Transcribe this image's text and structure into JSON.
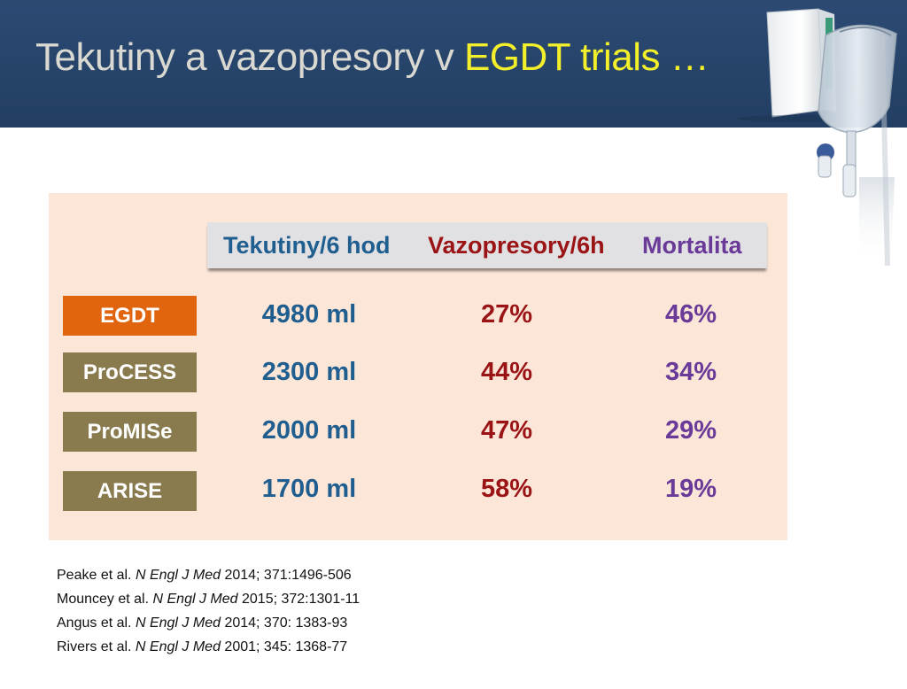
{
  "slide": {
    "title_main": "Tekutiny a vazopresory v ",
    "title_highlight": "EGDT trials …"
  },
  "table": {
    "columns": [
      "Tekutiny/6 hod",
      "Vazopresory/6h",
      "Mortalita"
    ],
    "rows": [
      {
        "trial": "EGDT",
        "fluids": "4980 ml",
        "vasopressors": "27%",
        "mortality": "46%",
        "badge_color": "#e1650f"
      },
      {
        "trial": "ProCESS",
        "fluids": "2300 ml",
        "vasopressors": "44%",
        "mortality": "34%",
        "badge_color": "#8a7b4f"
      },
      {
        "trial": "ProMISe",
        "fluids": "2000 ml",
        "vasopressors": "47%",
        "mortality": "29%",
        "badge_color": "#8a7b4f"
      },
      {
        "trial": "ARISE",
        "fluids": "1700 ml",
        "vasopressors": "58%",
        "mortality": "19%",
        "badge_color": "#8a7b4f"
      }
    ]
  },
  "references": [
    {
      "author": "Peake  et al. ",
      "journal": "N Engl J Med",
      "citation": " 2014; 371:1496-506"
    },
    {
      "author": "Mouncey  et al. ",
      "journal": "N Engl J Med",
      "citation": " 2015; 372:1301-11"
    },
    {
      "author": "Angus et al. ",
      "journal": "N Engl J Med",
      "citation": "  2014; 370: 1383-93"
    },
    {
      "author": "Rivers et al. ",
      "journal": "N Engl J Med",
      "citation": "  2001; 345: 1368-77"
    }
  ],
  "colors": {
    "header_bg": "#2c4a73",
    "title_text": "#d9d9d2",
    "title_highlight": "#f3ef2a",
    "panel_bg": "#fce6d8",
    "fluid_text": "#1f5e8f",
    "vaso_text": "#9a1416",
    "mortality_text": "#6a3a98"
  },
  "icons": [
    "noradrenalin-box-image",
    "iv-bag-image"
  ]
}
